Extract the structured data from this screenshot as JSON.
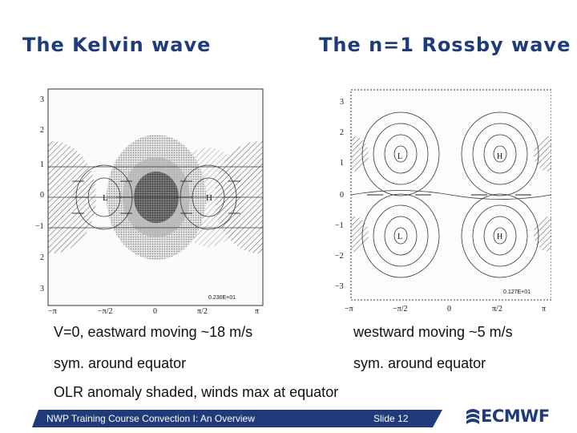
{
  "titles": {
    "left": "The Kelvin wave",
    "right": "The n=1 Rossby wave"
  },
  "figures": {
    "kelvin": {
      "y_ticks": [
        "3",
        "2",
        "1",
        "0",
        "−1",
        "2",
        "3"
      ],
      "x_ticks": [
        "−π",
        "−π/2",
        "0",
        "π/2",
        "π"
      ],
      "labels": [
        "L",
        "H"
      ],
      "scale_label": "0.230E+01"
    },
    "rossby": {
      "y_ticks": [
        "3",
        "2",
        "1",
        "0",
        "−1",
        "−2",
        "−3"
      ],
      "x_ticks": [
        "−π",
        "−π/2",
        "0",
        "π/2",
        "π"
      ],
      "labels": [
        "L",
        "H",
        "L",
        "H"
      ],
      "scale_label": "0.127E+01"
    }
  },
  "captions": {
    "left_1": "V=0, eastward moving ~18 m/s",
    "left_2": "sym. around equator",
    "right_1": "westward moving ~5 m/s",
    "right_2": "sym. around equator",
    "bottom": "OLR anomaly shaded, winds max at equator"
  },
  "footer": {
    "course": "NWP Training Course Convection I: An Overview",
    "slide": "Slide 12",
    "logo": "ECMWF"
  },
  "colors": {
    "title": "#1f3b7a",
    "footer_bar": "#1f3b7a",
    "logo": "#1f3b7a"
  }
}
